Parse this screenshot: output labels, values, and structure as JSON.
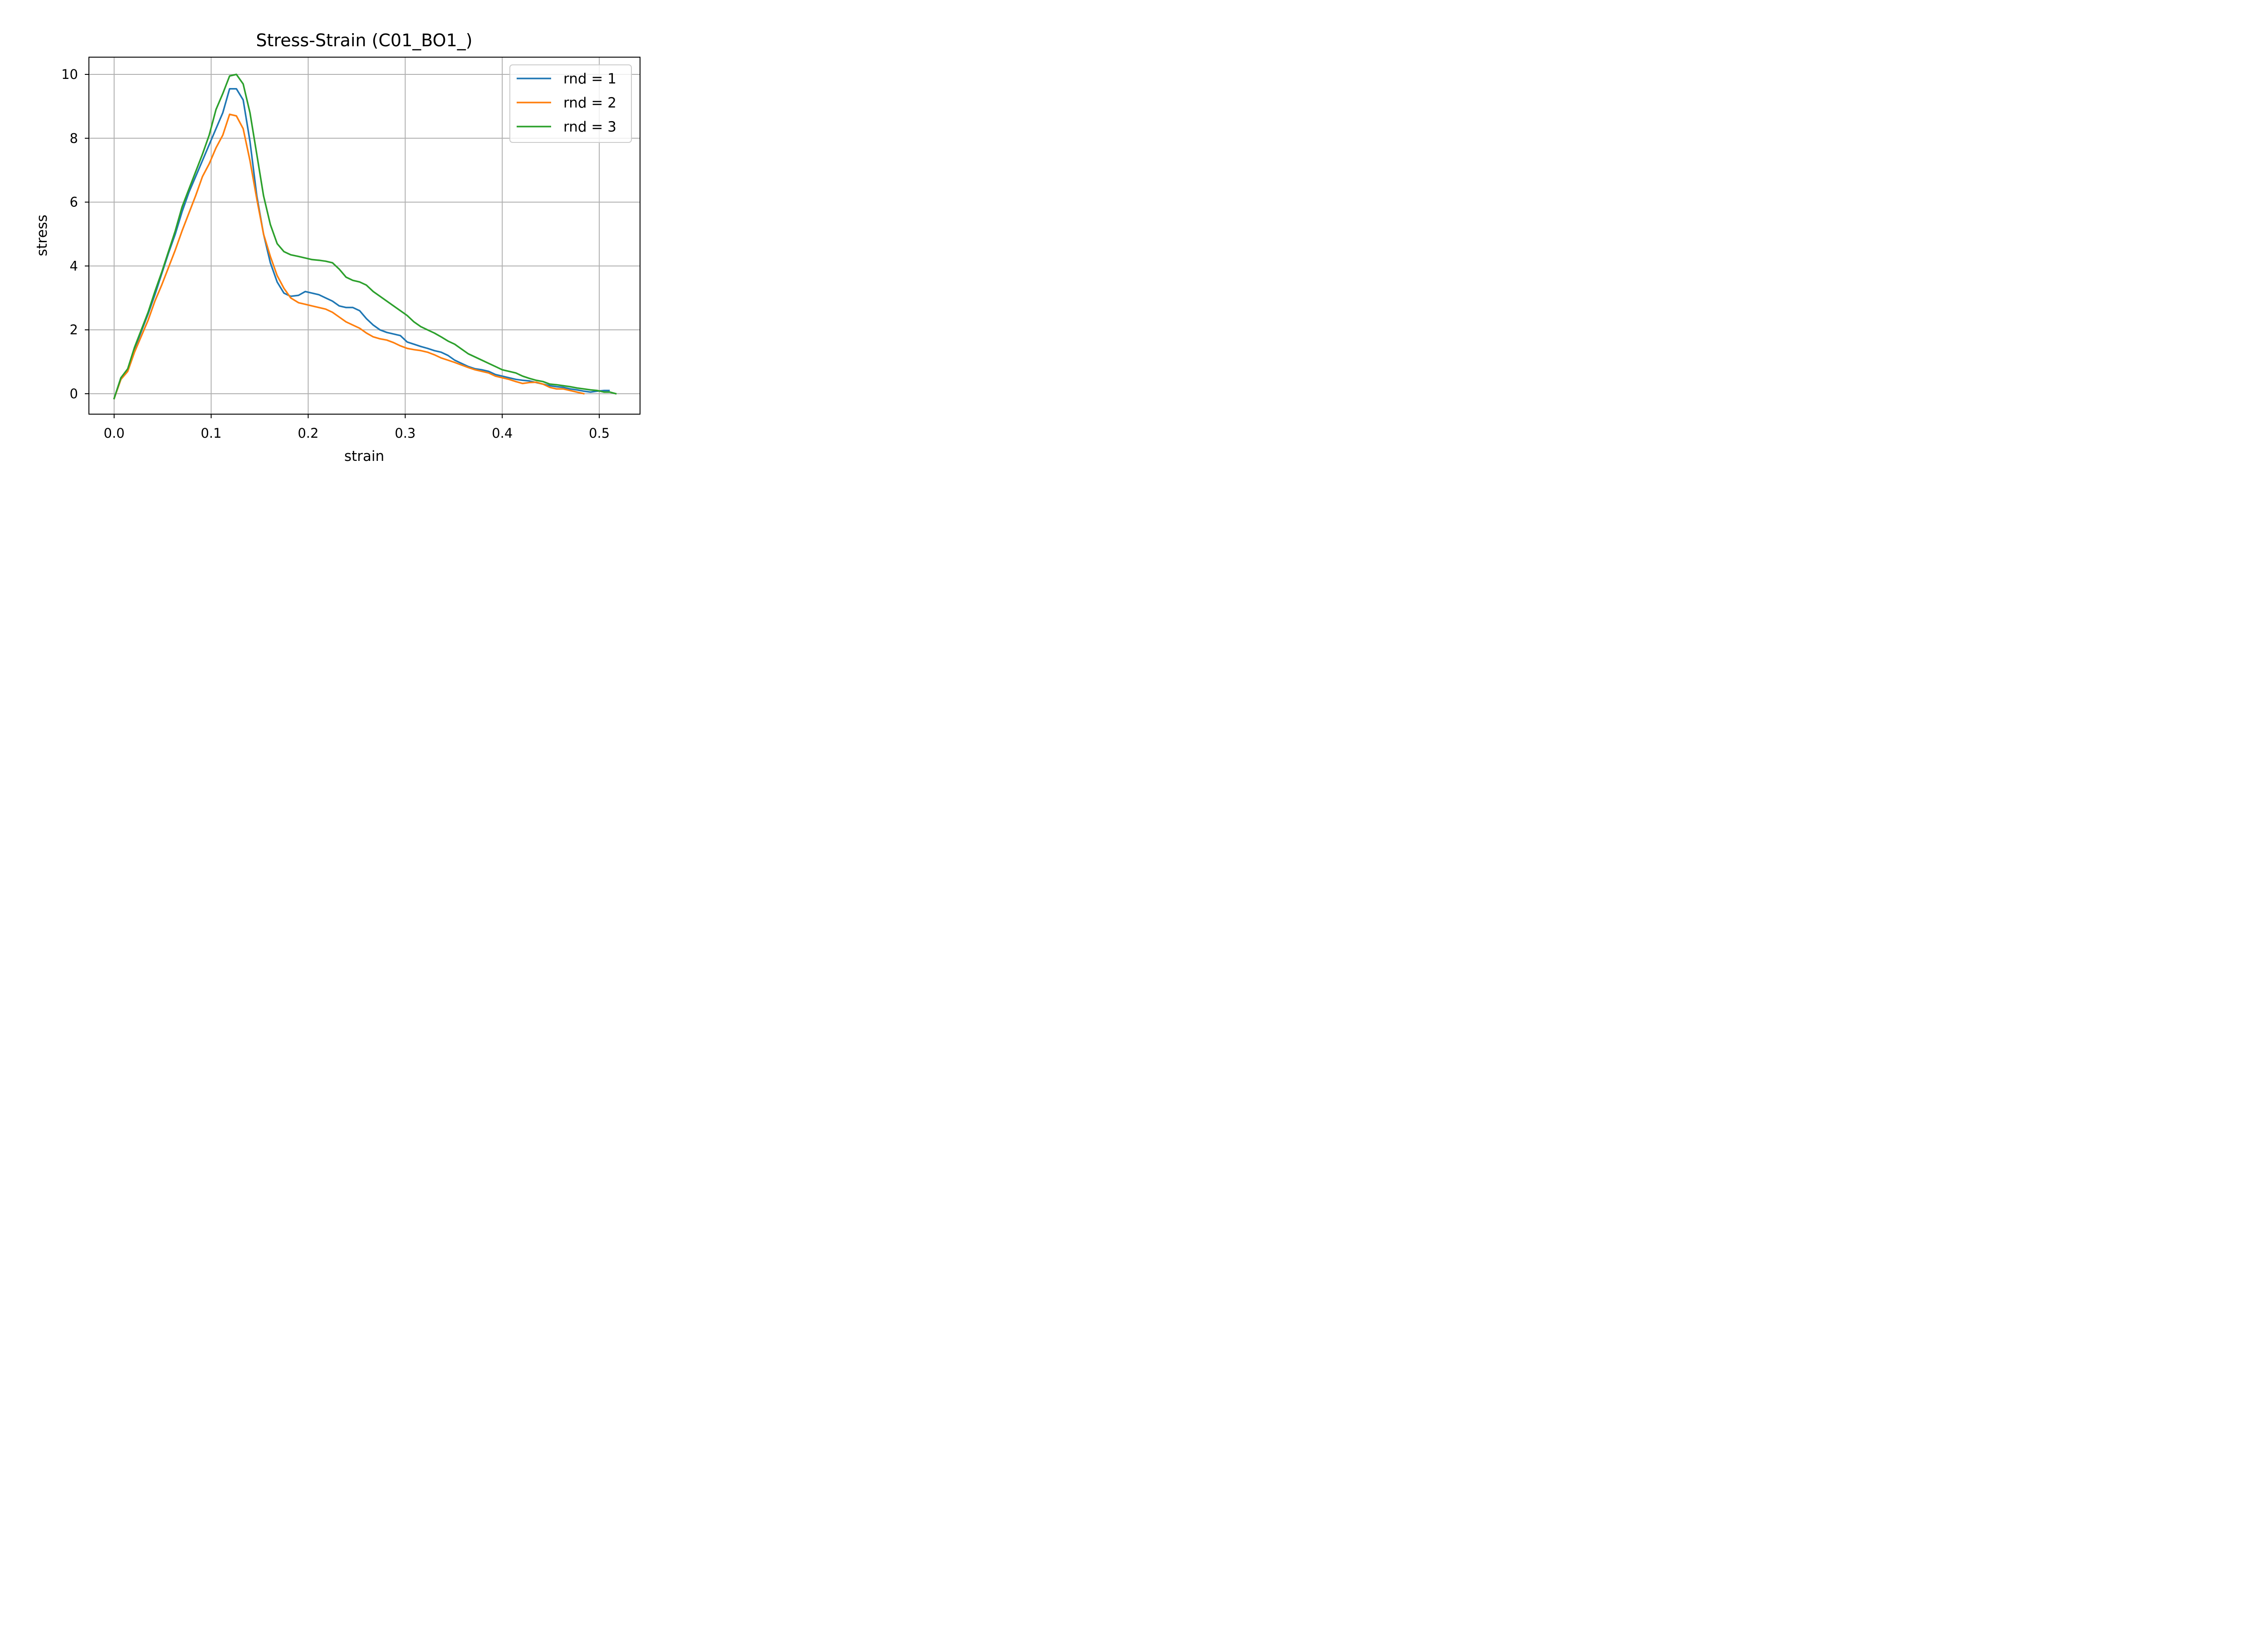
{
  "chart_data": {
    "type": "line",
    "title": "Stress-Strain (C01_BO1_)",
    "xlabel": "strain",
    "ylabel": "stress",
    "xlim": [
      -0.026,
      0.542
    ],
    "ylim": [
      -0.64,
      10.54
    ],
    "xticks": [
      0.0,
      0.1,
      0.2,
      0.3,
      0.4,
      0.5
    ],
    "xtick_labels": [
      "0.0",
      "0.1",
      "0.2",
      "0.3",
      "0.4",
      "0.5"
    ],
    "yticks": [
      0,
      2,
      4,
      6,
      8,
      10
    ],
    "ytick_labels": [
      "0",
      "2",
      "4",
      "6",
      "8",
      "10"
    ],
    "grid": true,
    "legend_position": "top-right",
    "series": [
      {
        "name": "rnd = 1",
        "color": "#1f77b4",
        "x": [
          0.0,
          0.007,
          0.014,
          0.021,
          0.028,
          0.035,
          0.042,
          0.049,
          0.056,
          0.063,
          0.07,
          0.077,
          0.084,
          0.091,
          0.098,
          0.105,
          0.112,
          0.119,
          0.126,
          0.133,
          0.14,
          0.147,
          0.154,
          0.161,
          0.168,
          0.175,
          0.182,
          0.19,
          0.197,
          0.204,
          0.211,
          0.218,
          0.225,
          0.232,
          0.239,
          0.246,
          0.253,
          0.26,
          0.267,
          0.274,
          0.281,
          0.288,
          0.295,
          0.302,
          0.309,
          0.316,
          0.323,
          0.33,
          0.337,
          0.344,
          0.351,
          0.358,
          0.365,
          0.372,
          0.379,
          0.386,
          0.393,
          0.4,
          0.407,
          0.414,
          0.421,
          0.428,
          0.435,
          0.442,
          0.449,
          0.456,
          0.463,
          0.47,
          0.477,
          0.484,
          0.491,
          0.498,
          0.505,
          0.51
        ],
        "y": [
          -0.15,
          0.5,
          0.75,
          1.4,
          1.95,
          2.5,
          3.1,
          3.75,
          4.4,
          5.0,
          5.7,
          6.3,
          6.8,
          7.3,
          7.8,
          8.3,
          8.8,
          9.55,
          9.55,
          9.2,
          7.9,
          6.2,
          5.0,
          4.1,
          3.5,
          3.15,
          3.05,
          3.08,
          3.2,
          3.15,
          3.1,
          3.0,
          2.9,
          2.75,
          2.7,
          2.7,
          2.6,
          2.35,
          2.15,
          2.0,
          1.92,
          1.87,
          1.82,
          1.62,
          1.55,
          1.48,
          1.42,
          1.35,
          1.3,
          1.2,
          1.05,
          0.95,
          0.85,
          0.78,
          0.75,
          0.7,
          0.6,
          0.55,
          0.5,
          0.45,
          0.42,
          0.4,
          0.35,
          0.3,
          0.25,
          0.22,
          0.2,
          0.15,
          0.12,
          0.08,
          0.05,
          0.08,
          0.1,
          0.1
        ]
      },
      {
        "name": "rnd = 2",
        "color": "#ff7f0e",
        "x": [
          0.0,
          0.007,
          0.014,
          0.021,
          0.028,
          0.035,
          0.042,
          0.049,
          0.056,
          0.063,
          0.07,
          0.077,
          0.084,
          0.091,
          0.098,
          0.105,
          0.112,
          0.119,
          0.126,
          0.133,
          0.14,
          0.147,
          0.154,
          0.161,
          0.168,
          0.175,
          0.182,
          0.19,
          0.197,
          0.204,
          0.211,
          0.218,
          0.225,
          0.232,
          0.239,
          0.246,
          0.253,
          0.26,
          0.267,
          0.274,
          0.281,
          0.288,
          0.295,
          0.302,
          0.309,
          0.316,
          0.323,
          0.33,
          0.337,
          0.344,
          0.351,
          0.358,
          0.365,
          0.372,
          0.379,
          0.386,
          0.393,
          0.4,
          0.407,
          0.414,
          0.421,
          0.428,
          0.435,
          0.442,
          0.449,
          0.456,
          0.463,
          0.47,
          0.477,
          0.484
        ],
        "y": [
          -0.15,
          0.45,
          0.7,
          1.3,
          1.8,
          2.3,
          2.9,
          3.4,
          3.95,
          4.5,
          5.1,
          5.65,
          6.2,
          6.8,
          7.2,
          7.7,
          8.1,
          8.75,
          8.7,
          8.3,
          7.3,
          6.1,
          5.0,
          4.3,
          3.7,
          3.3,
          3.0,
          2.85,
          2.8,
          2.75,
          2.7,
          2.65,
          2.55,
          2.4,
          2.25,
          2.15,
          2.05,
          1.9,
          1.78,
          1.72,
          1.68,
          1.6,
          1.5,
          1.42,
          1.38,
          1.35,
          1.3,
          1.22,
          1.12,
          1.05,
          0.98,
          0.9,
          0.82,
          0.75,
          0.7,
          0.65,
          0.55,
          0.5,
          0.45,
          0.38,
          0.32,
          0.35,
          0.36,
          0.3,
          0.2,
          0.15,
          0.15,
          0.1,
          0.05,
          0.0
        ]
      },
      {
        "name": "rnd = 3",
        "color": "#2ca02c",
        "x": [
          0.0,
          0.007,
          0.014,
          0.021,
          0.028,
          0.035,
          0.042,
          0.049,
          0.056,
          0.063,
          0.07,
          0.077,
          0.084,
          0.091,
          0.098,
          0.105,
          0.112,
          0.119,
          0.126,
          0.133,
          0.14,
          0.147,
          0.154,
          0.161,
          0.168,
          0.175,
          0.182,
          0.19,
          0.197,
          0.204,
          0.211,
          0.218,
          0.225,
          0.232,
          0.239,
          0.246,
          0.253,
          0.26,
          0.267,
          0.274,
          0.281,
          0.288,
          0.295,
          0.302,
          0.309,
          0.316,
          0.323,
          0.33,
          0.337,
          0.344,
          0.351,
          0.358,
          0.365,
          0.372,
          0.379,
          0.386,
          0.393,
          0.4,
          0.407,
          0.414,
          0.421,
          0.428,
          0.435,
          0.442,
          0.449,
          0.456,
          0.463,
          0.47,
          0.477,
          0.484,
          0.491,
          0.498,
          0.505,
          0.511,
          0.517
        ],
        "y": [
          -0.15,
          0.5,
          0.78,
          1.45,
          2.0,
          2.55,
          3.2,
          3.8,
          4.45,
          5.1,
          5.85,
          6.4,
          6.95,
          7.5,
          8.1,
          8.9,
          9.4,
          9.95,
          10.0,
          9.7,
          8.8,
          7.5,
          6.2,
          5.3,
          4.7,
          4.45,
          4.35,
          4.3,
          4.25,
          4.2,
          4.18,
          4.15,
          4.1,
          3.9,
          3.65,
          3.55,
          3.5,
          3.4,
          3.2,
          3.05,
          2.9,
          2.75,
          2.6,
          2.45,
          2.25,
          2.1,
          2.0,
          1.9,
          1.78,
          1.65,
          1.55,
          1.4,
          1.25,
          1.15,
          1.05,
          0.95,
          0.85,
          0.75,
          0.7,
          0.65,
          0.55,
          0.48,
          0.42,
          0.38,
          0.3,
          0.28,
          0.25,
          0.22,
          0.18,
          0.15,
          0.12,
          0.1,
          0.05,
          0.05,
          0.0
        ]
      }
    ]
  }
}
